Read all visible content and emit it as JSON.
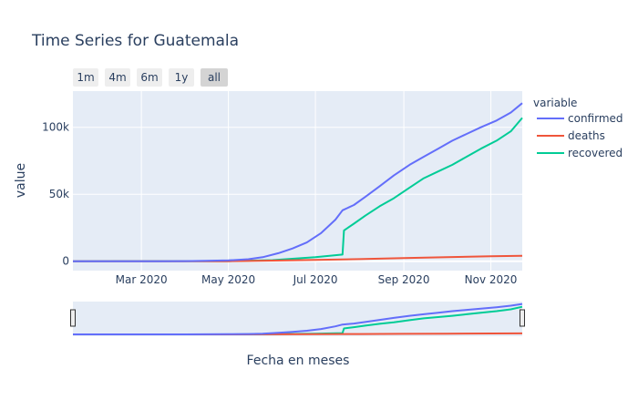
{
  "chart_data": {
    "type": "line",
    "title": "Time Series for Guatemala",
    "xlabel": "Fecha en meses",
    "ylabel": "value",
    "legend_title": "variable",
    "legend_position": "right",
    "grid": true,
    "x_ticks": [
      "Mar 2020",
      "May 2020",
      "Jul 2020",
      "Sep 2020",
      "Nov 2020"
    ],
    "y_ticks": [
      "0",
      "50k",
      "100k"
    ],
    "x_range": [
      "2020-01-13",
      "2020-11-23"
    ],
    "ylim": [
      -7000,
      127000
    ],
    "series": [
      {
        "name": "confirmed",
        "color": "#636efa",
        "points": [
          [
            "2020-01-13",
            0
          ],
          [
            "2020-03-13",
            0
          ],
          [
            "2020-04-01",
            100
          ],
          [
            "2020-04-15",
            300
          ],
          [
            "2020-05-01",
            650
          ],
          [
            "2020-05-15",
            1500
          ],
          [
            "2020-05-25",
            3000
          ],
          [
            "2020-06-05",
            6000
          ],
          [
            "2020-06-15",
            9500
          ],
          [
            "2020-06-25",
            14000
          ],
          [
            "2020-07-05",
            21000
          ],
          [
            "2020-07-15",
            31000
          ],
          [
            "2020-07-20",
            38000
          ],
          [
            "2020-07-28",
            42000
          ],
          [
            "2020-08-05",
            48000
          ],
          [
            "2020-08-15",
            56000
          ],
          [
            "2020-08-25",
            64000
          ],
          [
            "2020-09-05",
            72000
          ],
          [
            "2020-09-15",
            78000
          ],
          [
            "2020-09-25",
            84000
          ],
          [
            "2020-10-05",
            90000
          ],
          [
            "2020-10-15",
            95000
          ],
          [
            "2020-10-25",
            100000
          ],
          [
            "2020-11-05",
            105000
          ],
          [
            "2020-11-15",
            111000
          ],
          [
            "2020-11-23",
            118000
          ]
        ]
      },
      {
        "name": "deaths",
        "color": "#ef553b",
        "points": [
          [
            "2020-01-13",
            0
          ],
          [
            "2020-05-01",
            20
          ],
          [
            "2020-06-01",
            500
          ],
          [
            "2020-07-01",
            1000
          ],
          [
            "2020-08-01",
            1600
          ],
          [
            "2020-09-01",
            2300
          ],
          [
            "2020-10-01",
            3000
          ],
          [
            "2020-11-01",
            3700
          ],
          [
            "2020-11-23",
            4100
          ]
        ]
      },
      {
        "name": "recovered",
        "color": "#00cc96",
        "points": [
          [
            "2020-01-13",
            0
          ],
          [
            "2020-05-01",
            100
          ],
          [
            "2020-06-01",
            800
          ],
          [
            "2020-07-01",
            3000
          ],
          [
            "2020-07-20",
            5000
          ],
          [
            "2020-07-21",
            23000
          ],
          [
            "2020-07-28",
            28000
          ],
          [
            "2020-08-05",
            34000
          ],
          [
            "2020-08-15",
            41000
          ],
          [
            "2020-08-25",
            47000
          ],
          [
            "2020-09-05",
            55000
          ],
          [
            "2020-09-15",
            62000
          ],
          [
            "2020-09-25",
            67000
          ],
          [
            "2020-10-05",
            72000
          ],
          [
            "2020-10-15",
            78000
          ],
          [
            "2020-10-25",
            84000
          ],
          [
            "2020-11-05",
            90000
          ],
          [
            "2020-11-15",
            97000
          ],
          [
            "2020-11-23",
            107000
          ]
        ]
      }
    ]
  },
  "range_buttons": [
    "1m",
    "4m",
    "6m",
    "1y",
    "all"
  ],
  "range_active": "all"
}
